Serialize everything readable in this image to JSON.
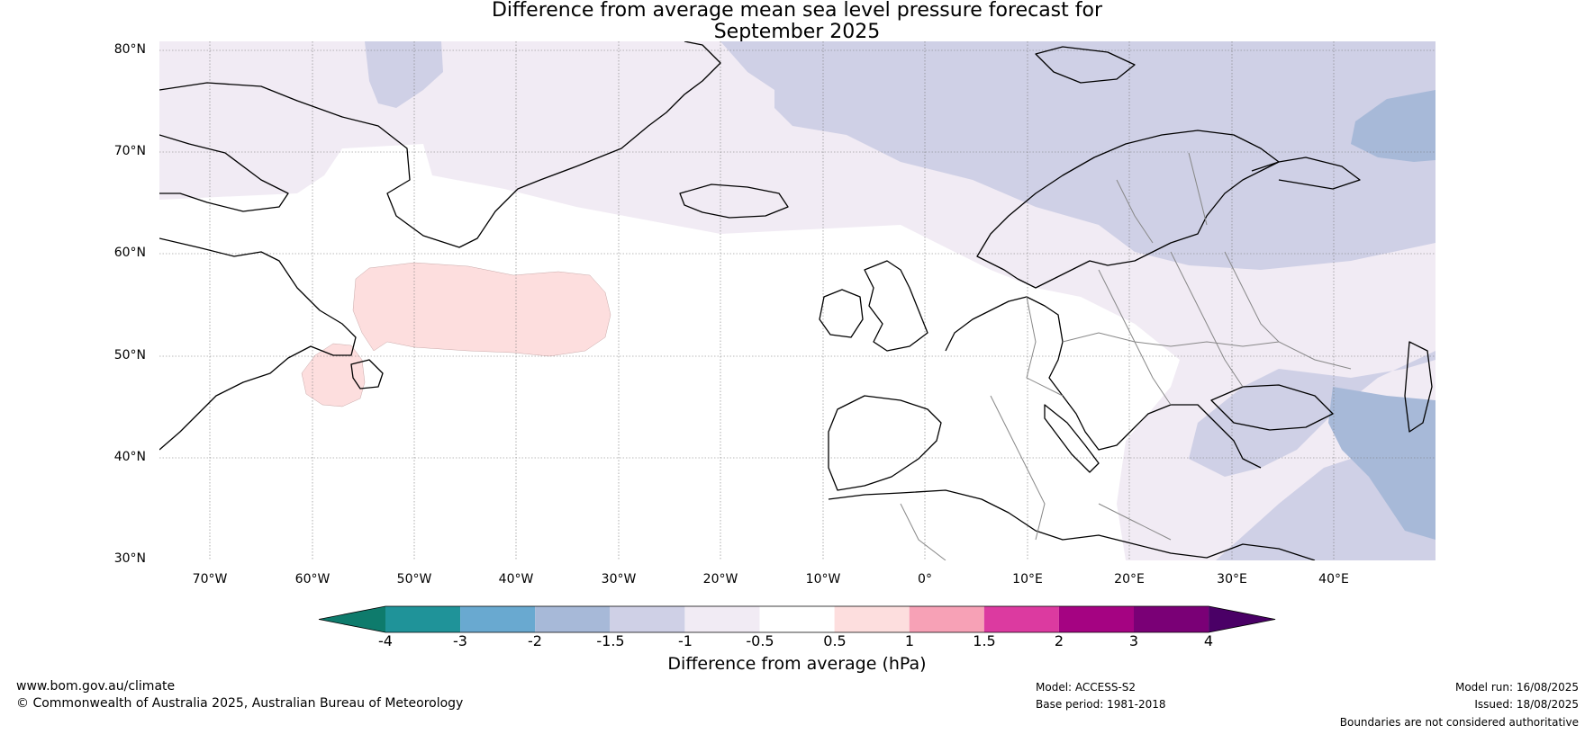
{
  "header": {
    "title_line1": "Difference from average mean sea level pressure forecast for",
    "title_line2": "September 2025"
  },
  "map": {
    "lat_labels": [
      "80°N",
      "70°N",
      "60°N",
      "50°N",
      "40°N",
      "30°N"
    ],
    "lon_labels": [
      "70°W",
      "60°W",
      "50°W",
      "40°W",
      "30°W",
      "20°W",
      "10°W",
      "0°",
      "10°E",
      "20°E",
      "30°E",
      "40°E"
    ],
    "extent": {
      "lon_min": -75,
      "lon_max": 50,
      "lat_min": 30,
      "lat_max": 80
    }
  },
  "colorbar": {
    "ticks": [
      "-4",
      "-3",
      "-2",
      "-1.5",
      "-1",
      "-0.5",
      "0.5",
      "1",
      "1.5",
      "2",
      "3",
      "4"
    ],
    "colors": [
      "#0e7b6c",
      "#1f9399",
      "#69a9d0",
      "#a7b9d8",
      "#cfd0e6",
      "#f1ebf4",
      "#ffffff",
      "#fddede",
      "#f7a1b6",
      "#dc3aa0",
      "#a50382",
      "#7a0076",
      "#4a0066"
    ],
    "title": "Difference from average (hPa)"
  },
  "footer": {
    "url": "www.bom.gov.au/climate",
    "copyright": "© Commonwealth of Australia 2025, Australian Bureau of Meteorology",
    "model": "Model: ACCESS-S2",
    "base_period": "Base period: 1981-2018",
    "model_run": "Model run: 16/08/2025",
    "issued": "Issued: 18/08/2025",
    "disclaimer": "Boundaries are not considered authoritative"
  }
}
